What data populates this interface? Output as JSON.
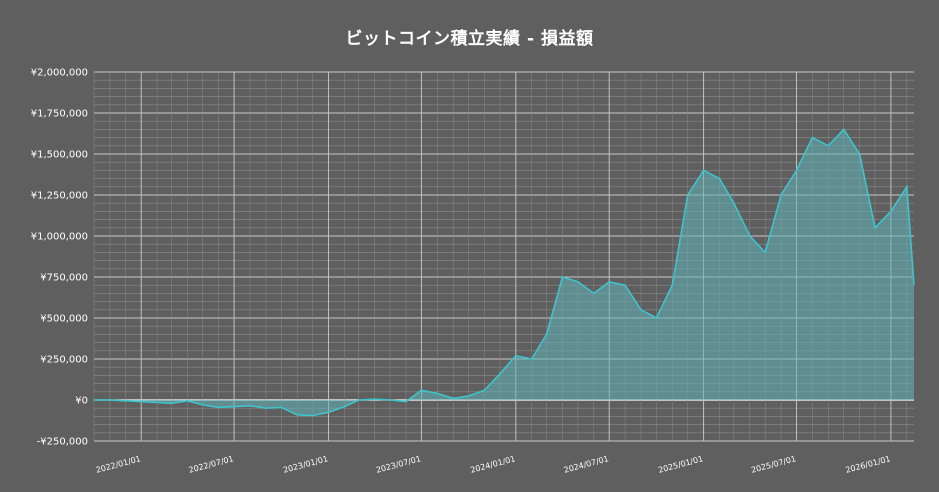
{
  "chart_data": {
    "type": "area",
    "title": "ビットコイン積立実績 - 損益額",
    "xlabel": "",
    "ylabel": "",
    "ylim": [
      -250000,
      2000000
    ],
    "xlim": [
      "2021-10-01",
      "2026-02-15"
    ],
    "grid": true,
    "legend": "none",
    "colors": {
      "background": "#5f5f5f",
      "line": "#3fc4cc",
      "fill": "#5fb3b8",
      "grid_major": "#c9c9c9",
      "grid_minor": "#8a8a8a",
      "zero_line": "#ffffff"
    },
    "y_ticks": [
      {
        "value": 2000000,
        "label": "¥2,000,000"
      },
      {
        "value": 1750000,
        "label": "¥1,750,000"
      },
      {
        "value": 1500000,
        "label": "¥1,500,000"
      },
      {
        "value": 1250000,
        "label": "¥1,250,000"
      },
      {
        "value": 1000000,
        "label": "¥1,000,000"
      },
      {
        "value": 750000,
        "label": "¥750,000"
      },
      {
        "value": 500000,
        "label": "¥500,000"
      },
      {
        "value": 250000,
        "label": "¥250,000"
      },
      {
        "value": 0,
        "label": "¥0"
      },
      {
        "value": -250000,
        "label": "-¥250,000"
      }
    ],
    "x_ticks": [
      {
        "value": "2022-01-01",
        "label": "2022/01/01"
      },
      {
        "value": "2022-07-01",
        "label": "2022/07/01"
      },
      {
        "value": "2023-01-01",
        "label": "2023/01/01"
      },
      {
        "value": "2023-07-01",
        "label": "2023/07/01"
      },
      {
        "value": "2024-01-01",
        "label": "2024/01/01"
      },
      {
        "value": "2024-07-01",
        "label": "2024/07/01"
      },
      {
        "value": "2025-01-01",
        "label": "2025/01/01"
      },
      {
        "value": "2025-07-01",
        "label": "2025/07/01"
      },
      {
        "value": "2026-01-01",
        "label": "2026/01/01"
      }
    ],
    "series": [
      {
        "x": [
          "2021-10-01",
          "2021-11-01",
          "2021-12-01",
          "2022-01-01",
          "2022-02-01",
          "2022-03-01",
          "2022-04-01",
          "2022-05-01",
          "2022-06-01",
          "2022-07-01",
          "2022-08-01",
          "2022-09-01",
          "2022-10-01",
          "2022-11-01",
          "2022-12-01",
          "2023-01-01",
          "2023-02-01",
          "2023-03-01",
          "2023-04-01",
          "2023-05-01",
          "2023-06-01",
          "2023-07-01",
          "2023-08-01",
          "2023-09-01",
          "2023-10-01",
          "2023-11-01",
          "2023-12-01",
          "2024-01-01",
          "2024-02-01",
          "2024-03-01",
          "2024-04-01",
          "2024-05-01",
          "2024-06-01",
          "2024-07-01",
          "2024-08-01",
          "2024-09-01",
          "2024-10-01",
          "2024-11-01",
          "2024-12-01",
          "2025-01-01",
          "2025-02-01",
          "2025-03-01",
          "2025-04-01",
          "2025-05-01",
          "2025-06-01",
          "2025-07-01",
          "2025-08-01",
          "2025-09-01",
          "2025-10-01",
          "2025-11-01",
          "2025-12-01",
          "2026-01-01",
          "2026-02-01",
          "2026-02-15"
        ],
        "values": [
          0,
          0,
          -5000,
          -10000,
          -15000,
          -20000,
          -5000,
          -30000,
          -45000,
          -40000,
          -35000,
          -50000,
          -45000,
          -90000,
          -95000,
          -75000,
          -40000,
          0,
          5000,
          0,
          -10000,
          60000,
          40000,
          10000,
          25000,
          60000,
          160000,
          270000,
          250000,
          400000,
          750000,
          720000,
          650000,
          720000,
          700000,
          550000,
          500000,
          700000,
          1250000,
          1400000,
          1350000,
          1200000,
          1000000,
          900000,
          1250000,
          1400000,
          1600000,
          1550000,
          1650000,
          1500000,
          1050000,
          1150000,
          1300000,
          700000
        ]
      }
    ]
  }
}
